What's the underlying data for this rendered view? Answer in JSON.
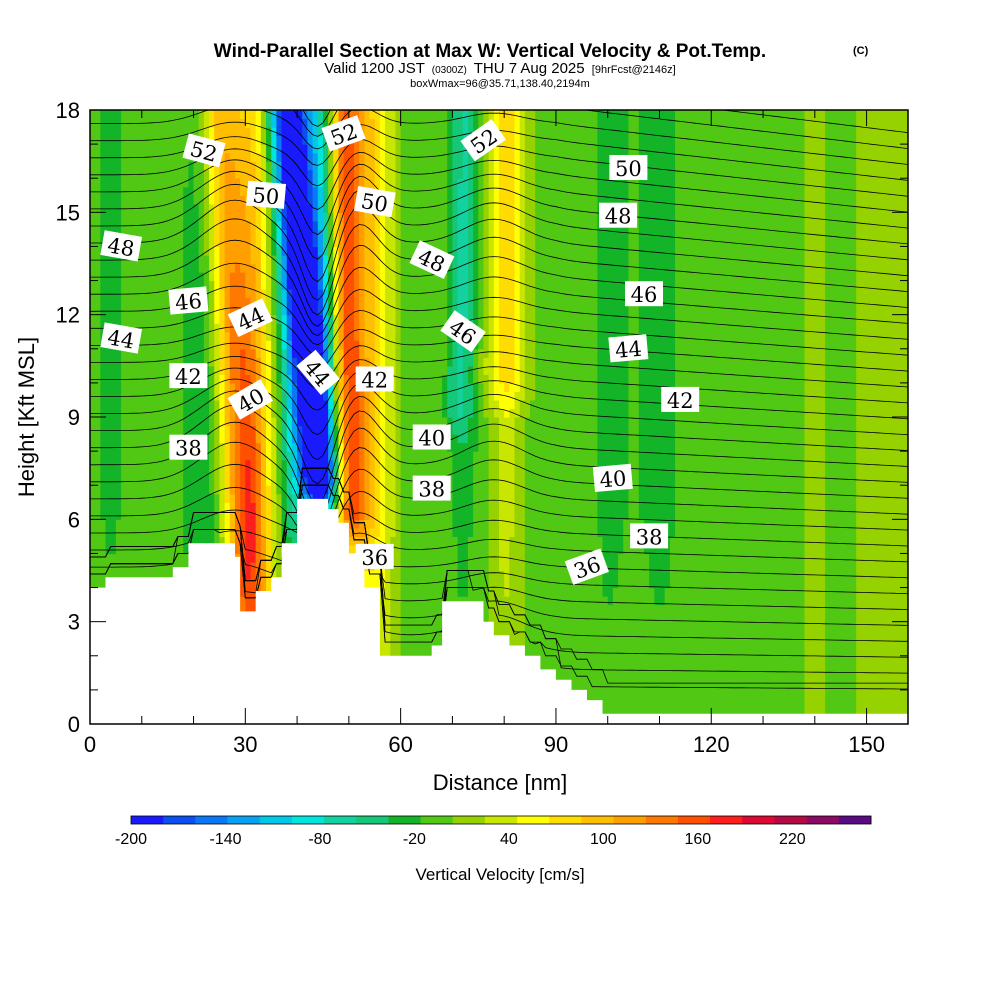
{
  "chart_data": {
    "type": "heatmap",
    "title": "Wind-Parallel Section at Max W: Vertical Velocity & Pot.Temp.",
    "title_mark": "(C)",
    "subtitle": {
      "valid": "Valid 1200 JST",
      "utc": "(0300Z)",
      "date": "THU 7 Aug 2025",
      "forecast": "[9hrFcst@2146z]"
    },
    "info_line": "boxWmax=96@35.71,138.40,2194m",
    "xlabel": "Distance [nm]",
    "ylabel": "Height [Kft MSL]",
    "xlim": [
      0,
      158
    ],
    "ylim": [
      0,
      18
    ],
    "x_ticks": [
      0,
      30,
      60,
      90,
      120,
      150
    ],
    "y_ticks": [
      0,
      3,
      6,
      9,
      12,
      15,
      18
    ],
    "x_tick_labels": [
      "0",
      "30",
      "60",
      "90",
      "120",
      "150"
    ],
    "y_tick_labels": [
      "0",
      "3",
      "6",
      "9",
      "12",
      "15",
      "18"
    ],
    "colorbar": {
      "label": "Vertical Velocity [cm/s]",
      "min": -200,
      "max": 250,
      "step": 20,
      "tick_labels": [
        "-200",
        "-140",
        "-80",
        "-20",
        "40",
        "100",
        "160",
        "220"
      ],
      "colors": [
        "#1a1aff",
        "#0a4ff0",
        "#0a78f5",
        "#0aa0f0",
        "#00c8e6",
        "#00e6dc",
        "#14d2a0",
        "#14c878",
        "#14b428",
        "#50c814",
        "#96d200",
        "#c8e600",
        "#ffff00",
        "#ffdc00",
        "#ffbe00",
        "#ffa000",
        "#ff7800",
        "#ff5000",
        "#ff1e1e",
        "#dc0a32",
        "#b40a46",
        "#8c0a64",
        "#5a0a82"
      ]
    },
    "velocity_field": {
      "x_nm": [
        0,
        2,
        4,
        6,
        8,
        10,
        12,
        14,
        16,
        18,
        20,
        22,
        24,
        26,
        28,
        30,
        32,
        34,
        36,
        38,
        40,
        42,
        44,
        46,
        48,
        50,
        52,
        54,
        56,
        58,
        60,
        62,
        64,
        66,
        68,
        70,
        72,
        74,
        76,
        78,
        80,
        82,
        84,
        86,
        88,
        90,
        92,
        94,
        96,
        98,
        100,
        102,
        104,
        106,
        108,
        110,
        112,
        114,
        116,
        118,
        120,
        122,
        124,
        126,
        128,
        130,
        132,
        134,
        136,
        138,
        140,
        142,
        144,
        146,
        148,
        150,
        152,
        154,
        156,
        158
      ],
      "background_cm_s": [
        -20,
        -20,
        -25,
        -20,
        -15,
        -15,
        -20,
        -15,
        -10,
        -20,
        -35,
        -40,
        -30,
        -10,
        20,
        60,
        80,
        50,
        10,
        -40,
        -60,
        -60,
        -80,
        -60,
        -20,
        20,
        60,
        80,
        60,
        30,
        0,
        -10,
        -20,
        -10,
        0,
        -20,
        -30,
        -20,
        -10,
        10,
        30,
        20,
        0,
        -10,
        -20,
        -15,
        -10,
        -10,
        -15,
        -20,
        -30,
        -25,
        -20,
        -20,
        -25,
        -30,
        -25,
        -15,
        -10,
        -15,
        -20,
        -20,
        -15,
        -10,
        -10,
        -15,
        -15,
        -10,
        -5,
        0,
        5,
        0,
        -5,
        -5,
        0,
        5,
        10,
        10,
        5,
        0
      ],
      "jets": [
        {
          "name": "updraft-a",
          "axis_nm": [
            [
              0,
              32
            ],
            [
              18,
              25
            ]
          ],
          "halfwidth_nm": 4,
          "peak_cm_s": 110
        },
        {
          "name": "downdraft",
          "axis_nm": [
            [
              6,
              45
            ],
            [
              18,
              38
            ]
          ],
          "halfwidth_nm": 4,
          "peak_cm_s": -200
        },
        {
          "name": "updraft-b",
          "axis_nm": [
            [
              5,
              50
            ],
            [
              18,
              49
            ]
          ],
          "halfwidth_nm": 3,
          "peak_cm_s": 140
        },
        {
          "name": "updraft-c",
          "axis_nm": [
            [
              9,
              80
            ],
            [
              18,
              80
            ]
          ],
          "halfwidth_nm": 5,
          "peak_cm_s": 45
        },
        {
          "name": "downdraft-b",
          "axis_nm": [
            [
              8,
              71
            ],
            [
              18,
              73
            ]
          ],
          "halfwidth_nm": 3,
          "peak_cm_s": -40
        }
      ]
    },
    "terrain": {
      "x_nm": [
        0,
        3,
        3,
        16,
        16,
        19,
        19,
        22,
        22,
        28,
        28,
        29,
        29,
        31,
        31,
        32,
        32,
        35,
        35,
        37,
        37,
        40,
        40,
        43,
        43,
        46,
        46,
        48,
        48,
        50,
        50,
        53,
        53,
        56,
        56,
        61,
        61,
        64,
        64,
        66,
        66,
        68,
        68,
        74,
        74,
        76,
        76,
        78,
        78,
        81,
        81,
        84,
        84,
        87,
        87,
        90,
        90,
        93,
        93,
        96,
        96,
        99,
        99,
        104,
        104,
        158
      ],
      "height_kft": [
        4,
        4,
        4.3,
        4.3,
        4.6,
        4.6,
        5.3,
        5.3,
        5.3,
        5.3,
        4.9,
        4.9,
        3.3,
        3.3,
        3.3,
        3.3,
        3.9,
        3.9,
        4.3,
        4.3,
        5.3,
        5.3,
        6.6,
        6.6,
        6.6,
        6.6,
        6.3,
        6.3,
        5.9,
        5.9,
        5,
        5,
        4,
        4,
        2,
        2,
        2,
        2,
        2,
        2,
        2.3,
        2.3,
        3.6,
        3.6,
        3.6,
        3.6,
        3,
        3,
        2.6,
        2.6,
        2.3,
        2.3,
        2,
        2,
        1.6,
        1.6,
        1.3,
        1.3,
        1,
        1,
        0.7,
        0.7,
        0.3,
        0.3,
        0.3,
        0.3
      ]
    },
    "theta_isentropes": {
      "levels": [
        36,
        38,
        40,
        42,
        44,
        46,
        48,
        50,
        52
      ],
      "labels": [
        {
          "text": "52",
          "x": 22,
          "y": 16.8,
          "angle": 15
        },
        {
          "text": "50",
          "x": 34,
          "y": 15.5,
          "angle": 5
        },
        {
          "text": "48",
          "x": 6,
          "y": 14.0,
          "angle": 10
        },
        {
          "text": "46",
          "x": 19,
          "y": 12.4,
          "angle": -5
        },
        {
          "text": "44",
          "x": 6,
          "y": 11.3,
          "angle": 10
        },
        {
          "text": "44",
          "x": 31,
          "y": 11.9,
          "angle": -25
        },
        {
          "text": "42",
          "x": 19,
          "y": 10.2,
          "angle": 0
        },
        {
          "text": "40",
          "x": 31,
          "y": 9.5,
          "angle": -30
        },
        {
          "text": "38",
          "x": 19,
          "y": 8.1,
          "angle": 0
        },
        {
          "text": "44",
          "x": 44,
          "y": 10.3,
          "angle": 50
        },
        {
          "text": "52",
          "x": 49,
          "y": 17.3,
          "angle": -20
        },
        {
          "text": "50",
          "x": 55,
          "y": 15.3,
          "angle": 10
        },
        {
          "text": "48",
          "x": 66,
          "y": 13.6,
          "angle": 25
        },
        {
          "text": "46",
          "x": 72,
          "y": 11.5,
          "angle": 35
        },
        {
          "text": "42",
          "x": 55,
          "y": 10.1,
          "angle": 0
        },
        {
          "text": "40",
          "x": 66,
          "y": 8.4,
          "angle": 0
        },
        {
          "text": "38",
          "x": 66,
          "y": 6.9,
          "angle": 0
        },
        {
          "text": "36",
          "x": 55,
          "y": 4.9,
          "angle": 0
        },
        {
          "text": "52",
          "x": 76,
          "y": 17.1,
          "angle": -35
        },
        {
          "text": "50",
          "x": 104,
          "y": 16.3,
          "angle": 0
        },
        {
          "text": "48",
          "x": 102,
          "y": 14.9,
          "angle": 0
        },
        {
          "text": "46",
          "x": 107,
          "y": 12.6,
          "angle": 0
        },
        {
          "text": "44",
          "x": 104,
          "y": 11.0,
          "angle": -5
        },
        {
          "text": "42",
          "x": 114,
          "y": 9.5,
          "angle": 0
        },
        {
          "text": "40",
          "x": 101,
          "y": 7.2,
          "angle": -5
        },
        {
          "text": "38",
          "x": 108,
          "y": 5.5,
          "angle": 0
        },
        {
          "text": "36",
          "x": 96,
          "y": 4.6,
          "angle": -20
        }
      ]
    }
  }
}
